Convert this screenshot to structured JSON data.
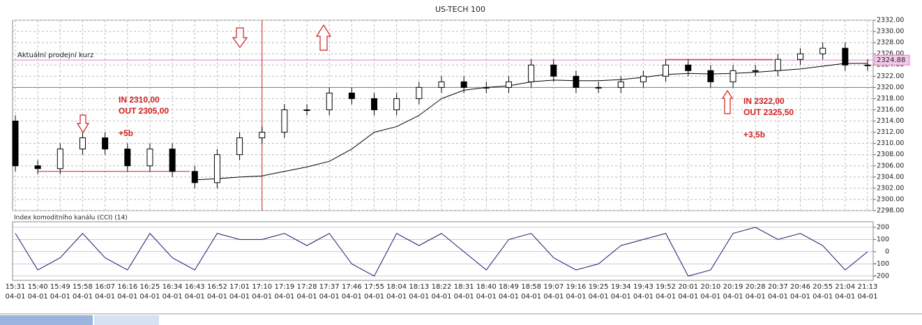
{
  "chart_data": [
    {
      "type": "candlestick",
      "title": "US-TECH 100",
      "categories": [
        "15:31",
        "15:40",
        "15:49",
        "15:58",
        "16:07",
        "16:16",
        "16:25",
        "16:34",
        "16:43",
        "16:52",
        "17:01",
        "17:10",
        "17:19",
        "17:28",
        "17:37",
        "17:46",
        "17:55",
        "18:04",
        "18:13",
        "18:22",
        "18:31",
        "18:40",
        "18:49",
        "18:58",
        "19:07",
        "19:16",
        "19:25",
        "19:34",
        "19:43",
        "19:52",
        "20:01",
        "20:10",
        "20:19",
        "20:28",
        "20:37",
        "20:46",
        "20:55",
        "21:04",
        "21:13"
      ],
      "dates": [
        "04-01",
        "04-01",
        "04-01",
        "04-01",
        "04-01",
        "04-01",
        "04-01",
        "04-01",
        "04-01",
        "04-01",
        "04-01",
        "04-01",
        "04-01",
        "04-01",
        "04-01",
        "04-01",
        "04-01",
        "04-01",
        "04-01",
        "04-01",
        "04-01",
        "04-01",
        "04-01",
        "04-01",
        "04-01",
        "04-01",
        "04-01",
        "04-01",
        "04-01",
        "04-01",
        "04-01",
        "04-01",
        "04-01",
        "04-01",
        "04-01",
        "04-01",
        "04-01",
        "04-01",
        "04-01"
      ],
      "open": [
        2314,
        2306,
        2305.5,
        2309,
        2311,
        2309,
        2306,
        2309,
        2305,
        2303,
        2308,
        2311,
        2312,
        2316,
        2316,
        2319,
        2318,
        2316,
        2318,
        2320,
        2321,
        2320,
        2320,
        2321,
        2324,
        2322,
        2320,
        2320,
        2321,
        2322,
        2324,
        2323,
        2321,
        2323,
        2323,
        2325,
        2326,
        2327,
        2324
      ],
      "high": [
        2315,
        2307,
        2310,
        2312,
        2312,
        2310,
        2310,
        2310,
        2306,
        2309,
        2312,
        2313,
        2317,
        2317,
        2320,
        2320,
        2319,
        2319,
        2321,
        2322,
        2322,
        2321,
        2322,
        2325,
        2325,
        2323,
        2321,
        2322,
        2323,
        2325,
        2325,
        2324,
        2324,
        2324,
        2326,
        2327,
        2328,
        2328,
        2325
      ],
      "low": [
        2305,
        2304.5,
        2304.5,
        2308,
        2308,
        2305,
        2305,
        2304,
        2302,
        2302,
        2307,
        2310,
        2311,
        2315,
        2315,
        2317,
        2315,
        2315,
        2317,
        2319,
        2319,
        2319,
        2319,
        2320,
        2321,
        2319,
        2319,
        2319,
        2320,
        2321,
        2322,
        2320,
        2320,
        2322,
        2322,
        2324,
        2325,
        2323,
        2323
      ],
      "close": [
        2306,
        2305.5,
        2309,
        2311,
        2309,
        2306,
        2309,
        2305,
        2303,
        2308,
        2311,
        2312,
        2316,
        2316,
        2319,
        2318,
        2316,
        2318,
        2320,
        2321,
        2320,
        2320,
        2321,
        2324,
        2322,
        2320,
        2320,
        2321,
        2322,
        2324,
        2323,
        2321,
        2323,
        2323,
        2325,
        2326,
        2327,
        2324,
        2324
      ],
      "color_up": "#ffffff",
      "color_down": "#000000",
      "moving_average": {
        "color": "#000000",
        "values": [
          null,
          null,
          null,
          null,
          null,
          null,
          null,
          null,
          2303.5,
          2303.7,
          2304,
          2304.2,
          2305,
          2305.8,
          2306.8,
          2309,
          2312,
          2313,
          2315,
          2318,
          2319.5,
          2320,
          2320.3,
          2321,
          2321.3,
          2321.2,
          2321.2,
          2321.4,
          2321.8,
          2322.3,
          2322.5,
          2322.4,
          2322.5,
          2322.7,
          2323,
          2323.3,
          2323.8,
          2324.3,
          2324.3
        ]
      },
      "ylim": [
        2298,
        2332
      ],
      "yticks": [
        {
          "value": 2298,
          "label": "2298.00"
        },
        {
          "value": 2300,
          "label": "2300.00"
        },
        {
          "value": 2302,
          "label": "2302.00"
        },
        {
          "value": 2304,
          "label": "2304.00"
        },
        {
          "value": 2306,
          "label": "2306.00"
        },
        {
          "value": 2308,
          "label": "2308.00"
        },
        {
          "value": 2310,
          "label": "2310.00"
        },
        {
          "value": 2312,
          "label": "2312.00"
        },
        {
          "value": 2314,
          "label": "2314.00"
        },
        {
          "value": 2316,
          "label": "2316.00"
        },
        {
          "value": 2318,
          "label": "2318.00"
        },
        {
          "value": 2320,
          "label": "2320.00"
        },
        {
          "value": 2322,
          "label": "2322.00"
        },
        {
          "value": 2324,
          "label": "2324.00"
        },
        {
          "value": 2326,
          "label": "2326.00"
        },
        {
          "value": 2328,
          "label": "2328.00"
        },
        {
          "value": 2330,
          "label": "2330.00"
        },
        {
          "value": 2332,
          "label": "2332.00"
        }
      ],
      "grid": true,
      "reference_lines": [
        {
          "label": "Aktuální prodejní kurz",
          "value": 2324.88,
          "value_label": "2324.88",
          "color": "#e080c0"
        },
        {
          "value": 2320,
          "color": "#20a0c0"
        }
      ],
      "trade_levels": [
        {
          "value": 2305,
          "from": "15:40",
          "to": "16:34",
          "color": "#d02020"
        },
        {
          "value": 2325,
          "from": "19:52",
          "to": "20:28",
          "color": "#d02020"
        }
      ],
      "event_line": {
        "category": "17:10",
        "color": "#d02020"
      },
      "annotations": [
        "IN 2310,00",
        "OUT 2305,00",
        "+5b",
        "IN 2322,00",
        "OUT 2325,50",
        "+3,5b"
      ]
    },
    {
      "type": "line",
      "title": "Index komoditního kanálu (CCI) (14)",
      "values": [
        150,
        -150,
        -50,
        150,
        -50,
        -150,
        150,
        -50,
        -150,
        150,
        100,
        100,
        150,
        50,
        150,
        -100,
        -200,
        150,
        50,
        150,
        0,
        -150,
        100,
        150,
        -50,
        -150,
        -100,
        50,
        100,
        150,
        -200,
        -150,
        150,
        200,
        100,
        150,
        50,
        -150,
        0
      ],
      "color": "#1a1a6e",
      "ylim": [
        -235,
        245
      ],
      "yticks": [
        200,
        100,
        0,
        -100,
        -200
      ],
      "grid": true
    }
  ]
}
